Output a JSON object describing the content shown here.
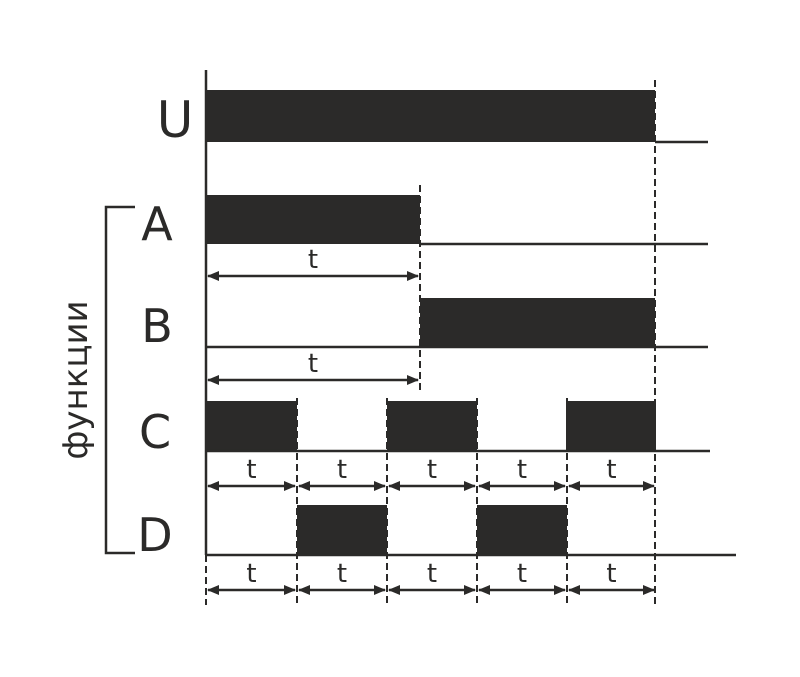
{
  "signals": [
    {
      "label": "U"
    },
    {
      "label": "A"
    },
    {
      "label": "B"
    },
    {
      "label": "C"
    },
    {
      "label": "D"
    }
  ],
  "group_label": "функции",
  "interval_label": "t",
  "colors": {
    "ink": "#2b2a29",
    "background": "#ffffff"
  }
}
